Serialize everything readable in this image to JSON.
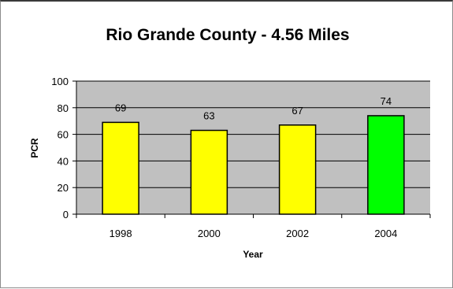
{
  "chart_data": {
    "type": "bar",
    "title": "Rio Grande County - 4.56 Miles",
    "xlabel": "Year",
    "ylabel": "PCR",
    "categories": [
      "1998",
      "2000",
      "2002",
      "2004"
    ],
    "values": [
      69,
      63,
      67,
      74
    ],
    "data_labels": [
      "69",
      "63",
      "67",
      "74"
    ],
    "bar_colors": [
      "#ffff00",
      "#ffff00",
      "#ffff00",
      "#00ff00"
    ],
    "plot_background": "#c0c0c0",
    "ylim": [
      0,
      100
    ],
    "yticks": [
      "0",
      "20",
      "40",
      "60",
      "80",
      "100"
    ],
    "grid": true,
    "legend": "none"
  }
}
